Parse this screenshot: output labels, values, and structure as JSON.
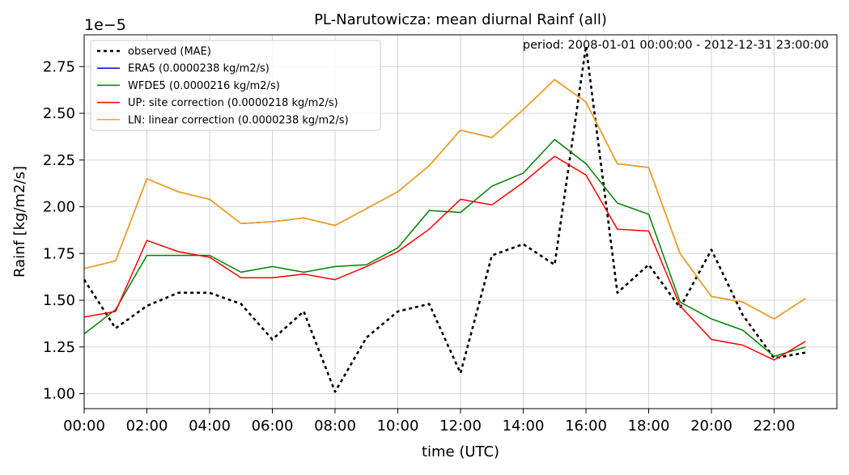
{
  "chart_data": {
    "type": "line",
    "title": "PL-Narutowicza: mean diurnal Rainf (all)",
    "xlabel": "time (UTC)",
    "ylabel": "Rainf [kg/m2/s]",
    "y_offset_label": "1e−5",
    "annotation": "period: 2008-01-01 00:00:00 - 2012-12-31 23:00:00",
    "x_tick_labels": [
      "00:00",
      "02:00",
      "04:00",
      "06:00",
      "08:00",
      "10:00",
      "12:00",
      "14:00",
      "16:00",
      "18:00",
      "20:00",
      "22:00"
    ],
    "x_ticks": [
      0,
      2,
      4,
      6,
      8,
      10,
      12,
      14,
      16,
      18,
      20,
      22
    ],
    "y_ticks": [
      1.0,
      1.25,
      1.5,
      1.75,
      2.0,
      2.25,
      2.5,
      2.75
    ],
    "y_tick_labels": [
      "1.00",
      "1.25",
      "1.50",
      "1.75",
      "2.00",
      "2.25",
      "2.50",
      "2.75"
    ],
    "xlim": [
      0,
      24
    ],
    "ylim": [
      0.92,
      2.92
    ],
    "grid": true,
    "legend_position": "top-left",
    "x": [
      0,
      1,
      2,
      3,
      4,
      5,
      6,
      7,
      8,
      9,
      10,
      11,
      12,
      13,
      14,
      15,
      16,
      17,
      18,
      19,
      20,
      21,
      22,
      23
    ],
    "series": [
      {
        "name": "observed (MAE)",
        "color": "#000000",
        "dashed": true,
        "values": [
          1.61,
          1.35,
          1.47,
          1.54,
          1.54,
          1.48,
          1.29,
          1.44,
          1.01,
          1.3,
          1.44,
          1.48,
          1.11,
          1.74,
          1.8,
          1.69,
          2.86,
          1.54,
          1.69,
          1.46,
          1.77,
          1.42,
          1.19,
          1.22
        ]
      },
      {
        "name": "ERA5 (0.0000238 kg/m2/s)",
        "color": "#0000ff",
        "dashed": false,
        "values": [
          1.67,
          1.71,
          2.15,
          2.08,
          2.04,
          1.91,
          1.92,
          1.94,
          1.9,
          1.99,
          2.08,
          2.22,
          2.41,
          2.37,
          2.52,
          2.68,
          2.56,
          2.23,
          2.21,
          1.75,
          1.52,
          1.49,
          1.4,
          1.51
        ]
      },
      {
        "name": "WFDE5 (0.0000216 kg/m2/s)",
        "color": "#008000",
        "dashed": false,
        "values": [
          1.32,
          1.45,
          1.74,
          1.74,
          1.74,
          1.65,
          1.68,
          1.65,
          1.68,
          1.69,
          1.78,
          1.98,
          1.97,
          2.11,
          2.18,
          2.36,
          2.23,
          2.02,
          1.96,
          1.49,
          1.4,
          1.34,
          1.2,
          1.25
        ]
      },
      {
        "name": "UP: site correction (0.0000218 kg/m2/s)",
        "color": "#ff0000",
        "dashed": false,
        "values": [
          1.41,
          1.44,
          1.82,
          1.76,
          1.73,
          1.62,
          1.62,
          1.64,
          1.61,
          1.68,
          1.76,
          1.88,
          2.04,
          2.01,
          2.13,
          2.27,
          2.17,
          1.88,
          1.87,
          1.47,
          1.29,
          1.26,
          1.18,
          1.28
        ]
      },
      {
        "name": "LN: linear correction (0.0000238 kg/m2/s)",
        "color": "#ffa500",
        "dashed": false,
        "values": [
          1.67,
          1.71,
          2.15,
          2.08,
          2.04,
          1.91,
          1.92,
          1.94,
          1.9,
          1.99,
          2.08,
          2.22,
          2.41,
          2.37,
          2.52,
          2.68,
          2.56,
          2.23,
          2.21,
          1.75,
          1.52,
          1.49,
          1.4,
          1.51
        ]
      }
    ]
  }
}
